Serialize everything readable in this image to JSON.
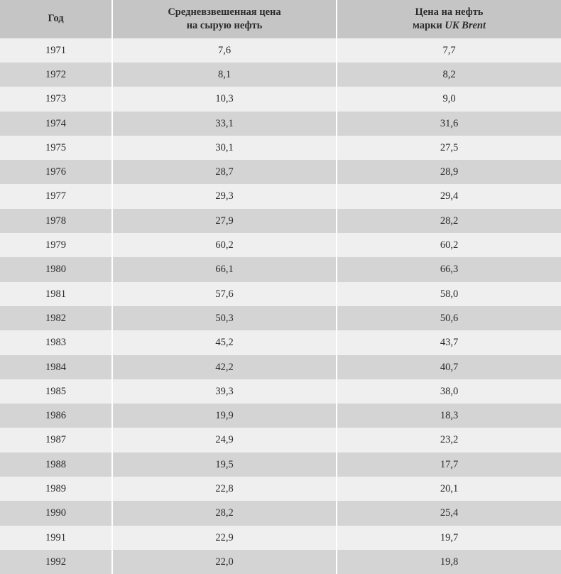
{
  "table": {
    "type": "table",
    "header_bg": "#c5c5c6",
    "row_odd_bg": "#efefef",
    "row_even_bg": "#d4d4d5",
    "border_color": "#ffffff",
    "text_color": "#2b2b2b",
    "font_size": 14.5,
    "columns": [
      {
        "label": "Год",
        "width": "20%",
        "align": "center"
      },
      {
        "label_line1": "Средневзвешенная цена",
        "label_line2": "на сырую нефть",
        "width": "40%",
        "align": "center"
      },
      {
        "label_line1": "Цена на нефть",
        "label_line2_prefix": "марки ",
        "label_line2_italic": "UK Brent",
        "width": "40%",
        "align": "center"
      }
    ],
    "rows": [
      {
        "year": "1971",
        "avg_price": "7,6",
        "brent_price": "7,7"
      },
      {
        "year": "1972",
        "avg_price": "8,1",
        "brent_price": "8,2"
      },
      {
        "year": "1973",
        "avg_price": "10,3",
        "brent_price": "9,0"
      },
      {
        "year": "1974",
        "avg_price": "33,1",
        "brent_price": "31,6"
      },
      {
        "year": "1975",
        "avg_price": "30,1",
        "brent_price": "27,5"
      },
      {
        "year": "1976",
        "avg_price": "28,7",
        "brent_price": "28,9"
      },
      {
        "year": "1977",
        "avg_price": "29,3",
        "brent_price": "29,4"
      },
      {
        "year": "1978",
        "avg_price": "27,9",
        "brent_price": "28,2"
      },
      {
        "year": "1979",
        "avg_price": "60,2",
        "brent_price": "60,2"
      },
      {
        "year": "1980",
        "avg_price": "66,1",
        "brent_price": "66,3"
      },
      {
        "year": "1981",
        "avg_price": "57,6",
        "brent_price": "58,0"
      },
      {
        "year": "1982",
        "avg_price": "50,3",
        "brent_price": "50,6"
      },
      {
        "year": "1983",
        "avg_price": "45,2",
        "brent_price": "43,7"
      },
      {
        "year": "1984",
        "avg_price": "42,2",
        "brent_price": "40,7"
      },
      {
        "year": "1985",
        "avg_price": "39,3",
        "brent_price": "38,0"
      },
      {
        "year": "1986",
        "avg_price": "19,9",
        "brent_price": "18,3"
      },
      {
        "year": "1987",
        "avg_price": "24,9",
        "brent_price": "23,2"
      },
      {
        "year": "1988",
        "avg_price": "19,5",
        "brent_price": "17,7"
      },
      {
        "year": "1989",
        "avg_price": "22,8",
        "brent_price": "20,1"
      },
      {
        "year": "1990",
        "avg_price": "28,2",
        "brent_price": "25,4"
      },
      {
        "year": "1991",
        "avg_price": "22,9",
        "brent_price": "19,7"
      },
      {
        "year": "1992",
        "avg_price": "22,0",
        "brent_price": "19,8"
      }
    ]
  }
}
